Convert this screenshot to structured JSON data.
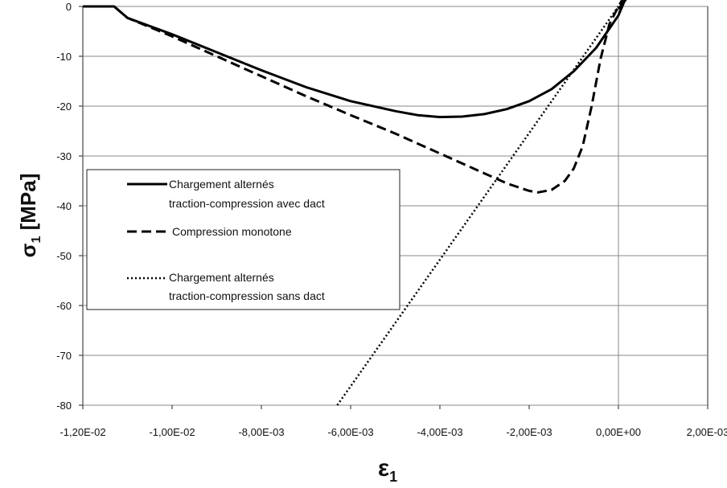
{
  "chart_data": {
    "type": "line",
    "xlabel": "ε",
    "xlabel_sub": "1",
    "ylabel": "σ",
    "ylabel_sub": "1",
    "ylabel_unit": " [MPa]",
    "xlim": [
      -0.012,
      0.002
    ],
    "ylim": [
      -80,
      0
    ],
    "x_ticks": [
      -0.012,
      -0.01,
      -0.008,
      -0.006,
      -0.004,
      -0.002,
      0.0,
      0.002
    ],
    "x_tick_labels": [
      "-1,20E-02",
      "-1,00E-02",
      "-8,00E-03",
      "-6,00E-03",
      "-4,00E-03",
      "-2,00E-03",
      "0,00E+00",
      "2,00E-03"
    ],
    "y_ticks": [
      0,
      -10,
      -20,
      -30,
      -40,
      -50,
      -60,
      -70,
      -80
    ],
    "y_tick_labels": [
      "0",
      "-10",
      "-20",
      "-30",
      "-40",
      "-50",
      "-60",
      "-70",
      "-80"
    ],
    "grid": true,
    "legend_position": "left",
    "series": [
      {
        "name": "Chargement alternés traction-compression avec dact",
        "legend_lines": [
          "Chargement alternés",
          "traction-compression avec dact"
        ],
        "style": "solid",
        "points": [
          [
            -0.012,
            0
          ],
          [
            -0.0113,
            0
          ],
          [
            -0.011,
            -2.3
          ],
          [
            -0.01,
            -5.6
          ],
          [
            -0.009,
            -9.2
          ],
          [
            -0.008,
            -12.8
          ],
          [
            -0.007,
            -16.2
          ],
          [
            -0.006,
            -19.0
          ],
          [
            -0.005,
            -21.0
          ],
          [
            -0.0045,
            -21.8
          ],
          [
            -0.004,
            -22.2
          ],
          [
            -0.0035,
            -22.1
          ],
          [
            -0.003,
            -21.6
          ],
          [
            -0.0025,
            -20.6
          ],
          [
            -0.002,
            -19.0
          ],
          [
            -0.0015,
            -16.6
          ],
          [
            -0.001,
            -13.0
          ],
          [
            -0.0005,
            -8.3
          ],
          [
            0.0,
            -1.8
          ],
          [
            0.0001,
            0.3
          ],
          [
            0.0002,
            2.5
          ],
          [
            0.00025,
            3.4
          ],
          [
            0.0003,
            3.0
          ],
          [
            0.0002,
            1.8
          ],
          [
            0.0001,
            0.6
          ],
          [
            0.0,
            -0.5
          ]
        ]
      },
      {
        "name": "Compression monotone",
        "legend_lines": [
          "Compression monotone"
        ],
        "style": "dashed",
        "points": [
          [
            -0.0113,
            0
          ],
          [
            -0.011,
            -2.3
          ],
          [
            -0.01,
            -6.0
          ],
          [
            -0.009,
            -10.0
          ],
          [
            -0.008,
            -14.0
          ],
          [
            -0.007,
            -18.0
          ],
          [
            -0.006,
            -21.8
          ],
          [
            -0.005,
            -25.5
          ],
          [
            -0.004,
            -29.5
          ],
          [
            -0.003,
            -33.5
          ],
          [
            -0.0025,
            -35.5
          ],
          [
            -0.002,
            -37.0
          ],
          [
            -0.0018,
            -37.3
          ],
          [
            -0.0015,
            -36.8
          ],
          [
            -0.0012,
            -35.0
          ],
          [
            -0.001,
            -32.5
          ],
          [
            -0.0008,
            -28.0
          ],
          [
            -0.0006,
            -20.0
          ],
          [
            -0.0004,
            -10.5
          ],
          [
            -0.0002,
            -3.5
          ],
          [
            0.0,
            0
          ],
          [
            0.0001,
            1.5
          ],
          [
            0.0002,
            2.7
          ]
        ]
      },
      {
        "name": "Chargement alternés traction-compression sans dact",
        "legend_lines": [
          "Chargement alternés",
          "traction-compression sans dact"
        ],
        "style": "dotted",
        "points": [
          [
            -0.0063,
            -80
          ],
          [
            0.0,
            0
          ],
          [
            0.0001,
            1.5
          ],
          [
            0.0002,
            2.8
          ]
        ]
      }
    ]
  }
}
